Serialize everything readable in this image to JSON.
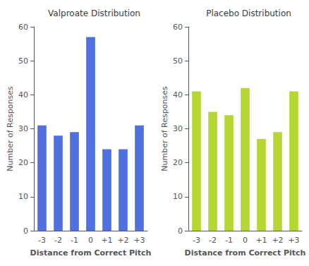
{
  "chart_data": [
    {
      "type": "bar",
      "title": "Valproate Distribution",
      "categories": [
        "-3",
        "-2",
        "-1",
        "0",
        "+1",
        "+2",
        "+3"
      ],
      "values": [
        31,
        28,
        29,
        57,
        24,
        24,
        31
      ],
      "xlabel": "Distance from Correct Pitch",
      "ylabel": "Number of Responses",
      "ylim": [
        0,
        60
      ],
      "yticks": [
        0,
        10,
        20,
        30,
        40,
        50,
        60
      ],
      "grid": false
    },
    {
      "type": "bar",
      "title": "Placebo Distribution",
      "categories": [
        "-3",
        "-2",
        "-1",
        "0",
        "+1",
        "+2",
        "+3"
      ],
      "values": [
        41,
        35,
        34,
        42,
        27,
        29,
        41
      ],
      "xlabel": "Distance from Correct Pitch",
      "ylabel": "Number of Responses",
      "ylim": [
        0,
        60
      ],
      "yticks": [
        0,
        10,
        20,
        30,
        40,
        50,
        60
      ],
      "grid": false
    }
  ]
}
